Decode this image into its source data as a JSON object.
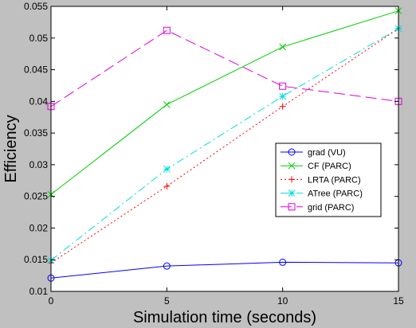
{
  "chart_data": {
    "type": "line",
    "title": "",
    "xlabel": "Simulation time (seconds)",
    "ylabel": "Efficiency",
    "x": [
      0,
      5,
      10,
      15
    ],
    "xlim": [
      0,
      15
    ],
    "ylim": [
      0.01,
      0.055
    ],
    "xticks": [
      "0",
      "5",
      "10",
      "15"
    ],
    "yticks": [
      "0.01",
      "0.015",
      "0.02",
      "0.025",
      "0.03",
      "0.035",
      "0.04",
      "0.045",
      "0.05",
      "0.055"
    ],
    "grid": false,
    "legend_position": "right",
    "series": [
      {
        "name": "grad (VU)",
        "color": "#0000ff",
        "dash": "solid",
        "marker": "circle",
        "values": [
          0.0121,
          0.014,
          0.0146,
          0.0145
        ]
      },
      {
        "name": "CF (PARC)",
        "color": "#00cc00",
        "dash": "solid",
        "marker": "x",
        "values": [
          0.0253,
          0.0395,
          0.0486,
          0.0543
        ]
      },
      {
        "name": "LRTA (PARC)",
        "color": "#ff0000",
        "dash": "dotted",
        "marker": "plus",
        "values": [
          0.0145,
          0.0266,
          0.0392,
          0.0515
        ]
      },
      {
        "name": "ATree (PARC)",
        "color": "#00dddd",
        "dash": "dashdot",
        "marker": "star",
        "values": [
          0.0149,
          0.0293,
          0.0408,
          0.0515
        ]
      },
      {
        "name": "grid (PARC)",
        "color": "#dd00dd",
        "dash": "dashed",
        "marker": "square",
        "values": [
          0.0392,
          0.0512,
          0.0424,
          0.04
        ]
      }
    ]
  }
}
